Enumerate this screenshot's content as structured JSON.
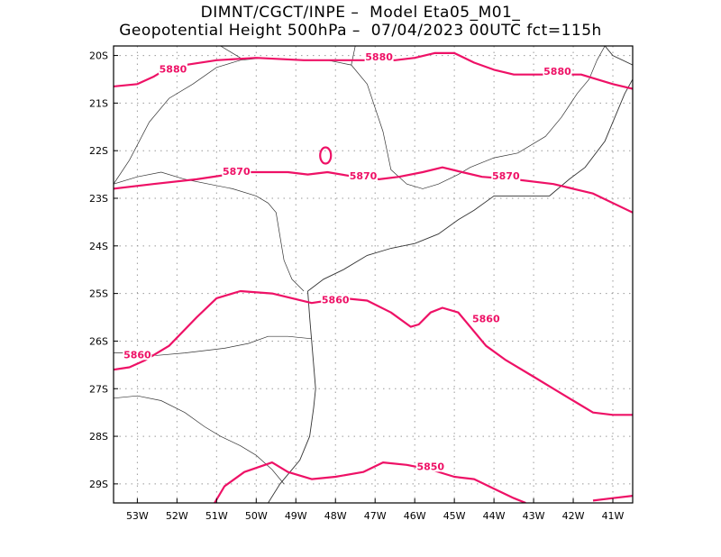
{
  "header": {
    "line1": "DIMNT/CGCT/INPE –  Model Eta05_M01_",
    "line2": "Geopotential Height 500hPa –  07/04/2023 00UTC fct=115h"
  },
  "map": {
    "lon_range": [
      -53.6,
      -40.5
    ],
    "lat_range": [
      -29.4,
      -19.8
    ],
    "lon_ticks": [
      "53W",
      "52W",
      "51W",
      "50W",
      "49W",
      "48W",
      "47W",
      "46W",
      "45W",
      "44W",
      "43W",
      "42W",
      "41W"
    ],
    "lat_ticks": [
      "20S",
      "21S",
      "22S",
      "23S",
      "24S",
      "25S",
      "26S",
      "27S",
      "28S",
      "29S"
    ],
    "contour_color": "#ee1166",
    "coast_color": "#333333",
    "grid_color": "#999999"
  },
  "contours": [
    {
      "value": "5880",
      "points": [
        [
          -53.6,
          -20.65
        ],
        [
          -53.0,
          -20.6
        ],
        [
          -52.6,
          -20.45
        ],
        [
          -52.2,
          -20.25
        ],
        [
          -51.0,
          -20.1
        ],
        [
          -50.0,
          -20.05
        ],
        [
          -48.8,
          -20.1
        ],
        [
          -47.8,
          -20.1
        ],
        [
          -46.5,
          -20.1
        ],
        [
          -46.0,
          -20.05
        ],
        [
          -45.5,
          -19.95
        ],
        [
          -45.0,
          -19.95
        ],
        [
          -44.5,
          -20.15
        ],
        [
          -44.0,
          -20.3
        ],
        [
          -43.5,
          -20.4
        ],
        [
          -42.5,
          -20.4
        ],
        [
          -41.8,
          -20.4
        ],
        [
          -41.0,
          -20.6
        ],
        [
          -40.5,
          -20.7
        ]
      ]
    },
    {
      "value": "5870",
      "points": [
        [
          -53.6,
          -22.8
        ],
        [
          -52.6,
          -22.7
        ],
        [
          -51.5,
          -22.6
        ],
        [
          -50.3,
          -22.45
        ],
        [
          -49.2,
          -22.45
        ],
        [
          -48.7,
          -22.5
        ],
        [
          -48.2,
          -22.45
        ],
        [
          -47.5,
          -22.55
        ],
        [
          -46.9,
          -22.6
        ],
        [
          -46.4,
          -22.55
        ],
        [
          -45.8,
          -22.45
        ],
        [
          -45.3,
          -22.35
        ],
        [
          -44.8,
          -22.45
        ],
        [
          -44.3,
          -22.55
        ],
        [
          -43.5,
          -22.6
        ],
        [
          -42.5,
          -22.7
        ],
        [
          -41.5,
          -22.9
        ],
        [
          -40.5,
          -23.3
        ]
      ]
    },
    {
      "value": "5860",
      "points": [
        [
          -53.6,
          -26.6
        ],
        [
          -53.2,
          -26.55
        ],
        [
          -52.8,
          -26.4
        ],
        [
          -52.2,
          -26.1
        ],
        [
          -51.5,
          -25.5
        ],
        [
          -51.0,
          -25.1
        ],
        [
          -50.4,
          -24.95
        ],
        [
          -49.6,
          -25.0
        ],
        [
          -48.6,
          -25.2
        ],
        [
          -47.8,
          -25.1
        ],
        [
          -47.2,
          -25.15
        ],
        [
          -46.6,
          -25.4
        ],
        [
          -46.1,
          -25.7
        ],
        [
          -45.9,
          -25.65
        ],
        [
          -45.6,
          -25.4
        ],
        [
          -45.3,
          -25.3
        ],
        [
          -44.9,
          -25.4
        ],
        [
          -44.6,
          -25.7
        ],
        [
          -44.2,
          -26.1
        ],
        [
          -43.7,
          -26.4
        ],
        [
          -43.0,
          -26.75
        ],
        [
          -42.5,
          -27.0
        ],
        [
          -42.0,
          -27.25
        ],
        [
          -41.5,
          -27.5
        ],
        [
          -41.0,
          -27.55
        ],
        [
          -40.5,
          -27.55
        ]
      ]
    },
    {
      "value": "5850",
      "points": [
        [
          -51.05,
          -29.4
        ],
        [
          -50.8,
          -29.05
        ],
        [
          -50.3,
          -28.75
        ],
        [
          -49.6,
          -28.55
        ],
        [
          -49.2,
          -28.75
        ],
        [
          -48.6,
          -28.9
        ],
        [
          -48.0,
          -28.85
        ],
        [
          -47.3,
          -28.75
        ],
        [
          -46.8,
          -28.55
        ],
        [
          -46.2,
          -28.6
        ],
        [
          -45.6,
          -28.7
        ],
        [
          -45.0,
          -28.85
        ],
        [
          -44.5,
          -28.9
        ],
        [
          -44.0,
          -29.1
        ],
        [
          -43.5,
          -29.3
        ],
        [
          -43.2,
          -29.4
        ]
      ]
    },
    {
      "value": "5850",
      "points": [
        [
          -41.5,
          -29.35
        ],
        [
          -41.0,
          -29.3
        ],
        [
          -40.5,
          -29.25
        ]
      ]
    }
  ],
  "contour_labels": [
    {
      "text": "5880",
      "lon": -52.1,
      "lat": -20.3
    },
    {
      "text": "5880",
      "lon": -46.9,
      "lat": -20.05
    },
    {
      "text": "5880",
      "lon": -42.4,
      "lat": -20.35
    },
    {
      "text": "5870",
      "lon": -50.5,
      "lat": -22.45
    },
    {
      "text": "5870",
      "lon": -47.3,
      "lat": -22.55
    },
    {
      "text": "5870",
      "lon": -43.7,
      "lat": -22.55
    },
    {
      "text": "5860",
      "lon": -53.0,
      "lat": -26.3
    },
    {
      "text": "5860",
      "lon": -48.0,
      "lat": -25.15
    },
    {
      "text": "5860",
      "lon": -44.2,
      "lat": -25.55
    },
    {
      "text": "5850",
      "lon": -45.6,
      "lat": -28.65
    }
  ],
  "coastline": [
    [
      -48.7,
      -24.95
    ],
    [
      -48.3,
      -24.7
    ],
    [
      -47.8,
      -24.5
    ],
    [
      -47.2,
      -24.2
    ],
    [
      -46.6,
      -24.05
    ],
    [
      -46.0,
      -23.95
    ],
    [
      -45.4,
      -23.75
    ],
    [
      -44.9,
      -23.45
    ],
    [
      -44.5,
      -23.25
    ],
    [
      -44.0,
      -22.95
    ],
    [
      -43.4,
      -22.95
    ],
    [
      -42.6,
      -22.95
    ],
    [
      -42.1,
      -22.6
    ],
    [
      -41.7,
      -22.35
    ],
    [
      -41.2,
      -21.8
    ],
    [
      -40.9,
      -21.2
    ],
    [
      -40.7,
      -20.8
    ],
    [
      -40.5,
      -20.5
    ],
    [
      -40.5,
      -20.2
    ],
    [
      -41.0,
      -20.0
    ],
    [
      -41.2,
      -19.8
    ]
  ],
  "coastline_south": [
    [
      -48.7,
      -24.95
    ],
    [
      -48.65,
      -25.5
    ],
    [
      -48.6,
      -26.0
    ],
    [
      -48.55,
      -26.5
    ],
    [
      -48.5,
      -27.0
    ],
    [
      -48.55,
      -27.4
    ],
    [
      -48.65,
      -28.0
    ],
    [
      -48.9,
      -28.5
    ],
    [
      -49.4,
      -29.0
    ],
    [
      -49.7,
      -29.4
    ]
  ],
  "borders": [
    [
      [
        -53.6,
        -22.7
      ],
      [
        -53.0,
        -22.55
      ],
      [
        -52.4,
        -22.45
      ],
      [
        -51.8,
        -22.6
      ],
      [
        -51.2,
        -22.7
      ],
      [
        -50.6,
        -22.8
      ],
      [
        -50.0,
        -22.95
      ],
      [
        -49.7,
        -23.1
      ],
      [
        -49.5,
        -23.3
      ],
      [
        -49.4,
        -23.8
      ],
      [
        -49.3,
        -24.3
      ],
      [
        -49.1,
        -24.7
      ],
      [
        -48.8,
        -24.95
      ]
    ],
    [
      [
        -53.6,
        -22.7
      ],
      [
        -53.2,
        -22.2
      ],
      [
        -52.7,
        -21.4
      ],
      [
        -52.2,
        -20.9
      ],
      [
        -51.6,
        -20.6
      ],
      [
        -51.0,
        -20.25
      ],
      [
        -50.4,
        -20.1
      ],
      [
        -49.8,
        -20.05
      ],
      [
        -49.0,
        -20.1
      ],
      [
        -48.2,
        -20.1
      ],
      [
        -47.6,
        -20.2
      ],
      [
        -47.2,
        -20.6
      ],
      [
        -47.0,
        -21.1
      ],
      [
        -46.8,
        -21.6
      ],
      [
        -46.7,
        -22.0
      ],
      [
        -46.6,
        -22.4
      ],
      [
        -46.2,
        -22.7
      ],
      [
        -45.8,
        -22.8
      ],
      [
        -45.4,
        -22.7
      ],
      [
        -44.9,
        -22.5
      ],
      [
        -44.6,
        -22.35
      ],
      [
        -44.0,
        -22.15
      ],
      [
        -43.4,
        -22.05
      ],
      [
        -42.7,
        -21.7
      ],
      [
        -42.3,
        -21.3
      ],
      [
        -41.9,
        -20.8
      ],
      [
        -41.6,
        -20.5
      ],
      [
        -41.4,
        -20.1
      ],
      [
        -41.2,
        -19.8
      ]
    ],
    [
      [
        -53.6,
        -26.25
      ],
      [
        -53.1,
        -26.25
      ],
      [
        -52.5,
        -26.3
      ],
      [
        -51.8,
        -26.25
      ],
      [
        -51.3,
        -26.2
      ],
      [
        -50.8,
        -26.15
      ],
      [
        -50.2,
        -26.05
      ],
      [
        -49.7,
        -25.9
      ],
      [
        -49.2,
        -25.9
      ],
      [
        -48.6,
        -25.95
      ]
    ],
    [
      [
        -53.6,
        -27.2
      ],
      [
        -53.0,
        -27.15
      ],
      [
        -52.4,
        -27.25
      ],
      [
        -51.8,
        -27.5
      ],
      [
        -51.3,
        -27.8
      ],
      [
        -50.9,
        -28.0
      ],
      [
        -50.4,
        -28.2
      ],
      [
        -50.0,
        -28.4
      ],
      [
        -49.6,
        -28.7
      ],
      [
        -49.3,
        -29.0
      ]
    ],
    [
      [
        -50.4,
        -20.05
      ],
      [
        -50.9,
        -19.8
      ]
    ],
    [
      [
        -47.6,
        -20.2
      ],
      [
        -47.5,
        -19.8
      ]
    ]
  ]
}
